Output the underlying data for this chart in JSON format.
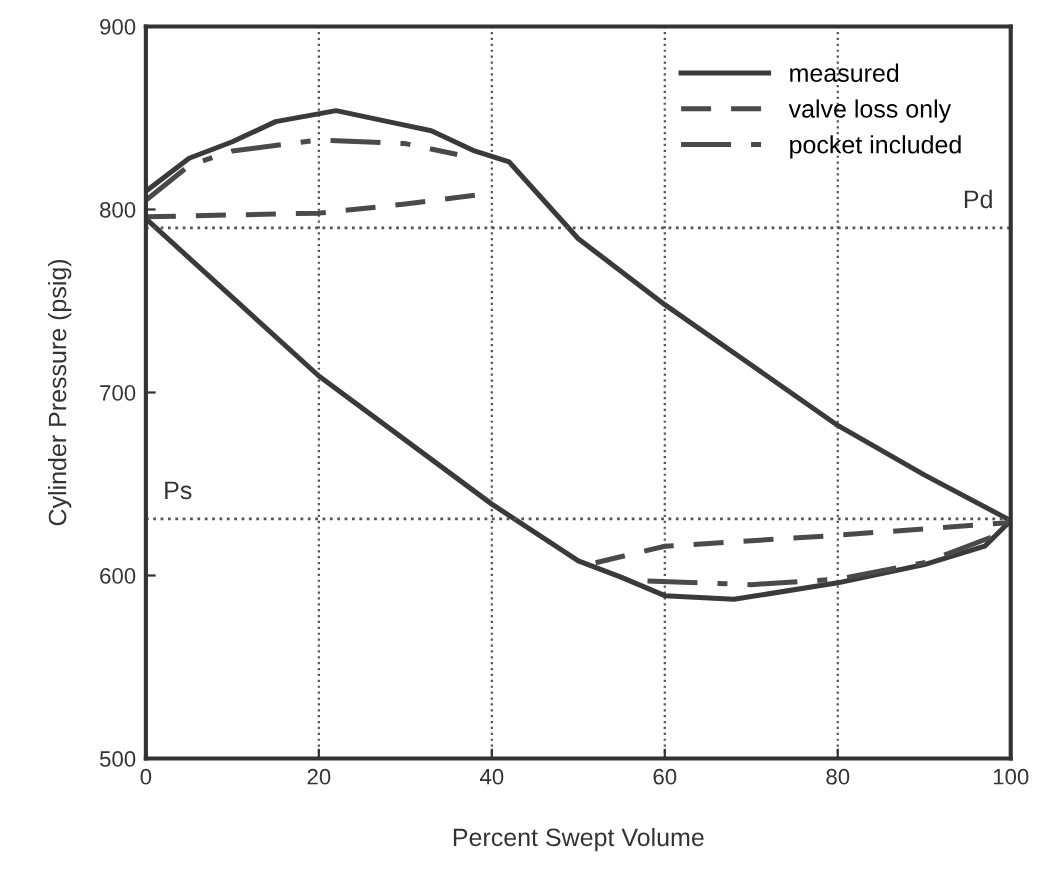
{
  "chart_data": {
    "type": "line",
    "xlabel": "Percent Swept Volume",
    "ylabel": "Cylinder Pressure (psig)",
    "xlim": [
      0,
      100
    ],
    "ylim": [
      500,
      900
    ],
    "xticks": [
      0,
      20,
      40,
      60,
      80,
      100
    ],
    "yticks": [
      500,
      600,
      700,
      800,
      900
    ],
    "grid": "x",
    "legend": "top right",
    "marker": "none",
    "ref_lines": [
      {
        "axis": "y",
        "value": 790,
        "label": "Pd",
        "color": "#555555",
        "line_style": "dotted"
      },
      {
        "axis": "y",
        "value": 631,
        "label": "Ps",
        "color": "#555555",
        "line_style": "dotted"
      }
    ],
    "series": [
      {
        "name": "measured",
        "color": "#3a3a3a",
        "line_style": "solid",
        "x": [
          0,
          5,
          10,
          15,
          22,
          28,
          33,
          38,
          42,
          50,
          60,
          70,
          80,
          90,
          100
        ],
        "values": [
          810,
          828,
          837,
          848,
          854,
          848,
          843,
          832,
          826,
          784,
          748,
          715,
          682,
          655,
          630
        ]
      },
      {
        "color": "#3a3a3a",
        "line_style": "solid",
        "x": [
          0,
          20,
          40,
          50,
          55,
          60,
          68,
          80,
          90,
          97,
          100
        ],
        "values": [
          795,
          709,
          639,
          608,
          599,
          589,
          587,
          596,
          606,
          616,
          630
        ]
      },
      {
        "name": "valve loss only",
        "color": "#4a4a4a",
        "line_style": "dashed",
        "x": [
          0,
          20,
          30,
          40,
          null,
          52,
          60,
          80,
          100
        ],
        "values": [
          796,
          798,
          803,
          809,
          null,
          607,
          616,
          622,
          629
        ]
      },
      {
        "name": "pocket included",
        "color": "#4a4a4a",
        "line_style": "dashdot",
        "x": [
          0,
          5,
          10,
          20,
          30,
          36,
          null,
          58,
          70,
          80,
          90,
          100
        ],
        "values": [
          805,
          824,
          832,
          838,
          836,
          830,
          null,
          597,
          595,
          598,
          607,
          625
        ]
      }
    ]
  }
}
